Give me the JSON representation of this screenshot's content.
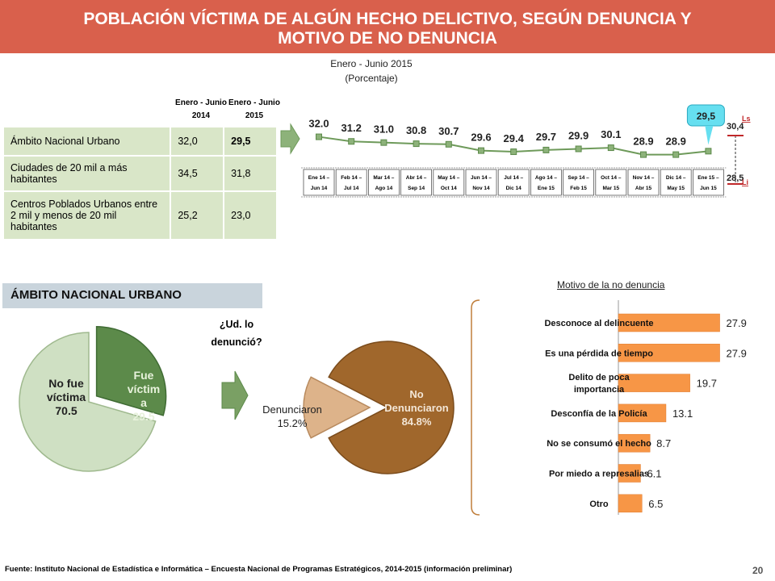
{
  "header": {
    "title_line1": "POBLACIÓN VÍCTIMA DE ALGÚN HECHO DELICTIVO, SEGÚN DENUNCIA Y",
    "title_line2": "MOTIVO DE NO DENUNCIA",
    "subtitle_line1": "Enero - Junio 2015",
    "subtitle_line2": "(Porcentaje)"
  },
  "colors": {
    "banner": "#d9604c",
    "line": "#6e9a5a",
    "bar": "#f79646",
    "pie_light": "#cfe0c3",
    "pie_dark": "#5c8a4a",
    "donut_dark": "#a0672c",
    "donut_light": "#ddb38a"
  },
  "comparison": {
    "col1": [
      "Enero - Junio",
      "2014"
    ],
    "col2": [
      "Enero - Junio",
      "2015"
    ],
    "rows": [
      {
        "label": "Ámbito Nacional Urbano",
        "v2014": "32,0",
        "v2015": "29,5"
      },
      {
        "label": "Ciudades de 20 mil a más habitantes",
        "v2014": "34,5",
        "v2015": "31,8"
      },
      {
        "label": "Centros Poblados Urbanos entre 2 mil y menos de 20 mil habitantes",
        "v2014": "25,2",
        "v2015": "23,0"
      }
    ]
  },
  "chart_data": [
    {
      "type": "line",
      "categories": [
        [
          "Ene 14 –",
          "Jun 14"
        ],
        [
          "Feb 14 –",
          "Jul 14"
        ],
        [
          "Mar 14 –",
          "Ago 14"
        ],
        [
          "Abr 14 –",
          "Sep 14"
        ],
        [
          "May 14 –",
          "Oct 14"
        ],
        [
          "Jun 14 –",
          "Nov 14"
        ],
        [
          "Jul 14 –",
          "Dic 14"
        ],
        [
          "Ago 14 –",
          "Ene 15"
        ],
        [
          "Sep 14 –",
          "Feb 15"
        ],
        [
          "Oct 14 –",
          "Mar 15"
        ],
        [
          "Nov 14 –",
          "Abr 15"
        ],
        [
          "Dic 14 –",
          "May 15"
        ],
        [
          "Ene 15 –",
          "Jun 15"
        ]
      ],
      "values": [
        32.0,
        31.2,
        31.0,
        30.8,
        30.7,
        29.6,
        29.4,
        29.7,
        29.9,
        30.1,
        28.9,
        28.9,
        29.5
      ],
      "labels": [
        "32.0",
        "31.2",
        "31.0",
        "30.8",
        "30.7",
        "29.6",
        "29.4",
        "29.7",
        "29.9",
        "30.1",
        "28.9",
        "28.9",
        "29,5"
      ],
      "ls": {
        "label": "Ls",
        "value": "30,4"
      },
      "li": {
        "label": "Li",
        "value": "28,5"
      }
    },
    {
      "type": "pie",
      "slices": [
        {
          "lines": [
            "No fue",
            "víctima",
            "70.5"
          ],
          "value": 70.5
        },
        {
          "lines": [
            "Fue",
            "víctim",
            "a",
            "29.5"
          ],
          "value": 29.5
        }
      ]
    },
    {
      "type": "pie",
      "slices": [
        {
          "lines": [
            "Denunciaron",
            "15.2%"
          ],
          "value": 15.2
        },
        {
          "lines": [
            "No",
            "Denunciaron",
            "84.8%"
          ],
          "value": 84.8
        }
      ]
    },
    {
      "type": "bar",
      "title": "Motivo de la no denuncia",
      "categories": [
        [
          "Desconoce al delincuente"
        ],
        [
          "Es una pérdida de tiempo"
        ],
        [
          "Delito de poca",
          "importancia"
        ],
        [
          "Desconfía de la Policía"
        ],
        [
          "No se consumó el hecho"
        ],
        [
          "Por miedo a represalias"
        ],
        [
          "Otro"
        ]
      ],
      "values": [
        27.9,
        27.9,
        19.7,
        13.1,
        8.7,
        6.1,
        6.5
      ],
      "labels": [
        "27.9",
        "27.9",
        "19.7",
        "13.1",
        "8.7",
        "6.1",
        "6.5"
      ]
    }
  ],
  "section": {
    "label": "ÁMBITO NACIONAL URBANO"
  },
  "question": {
    "lines": [
      "¿Ud. lo",
      "denunció?"
    ]
  },
  "motivo_title": "Motivo de la no denuncia",
  "footer": "Fuente: Instituto Nacional de Estadística e Informática – Encuesta Nacional de Programas Estratégicos, 2014-2015 (información preliminar)",
  "page_number": "20"
}
